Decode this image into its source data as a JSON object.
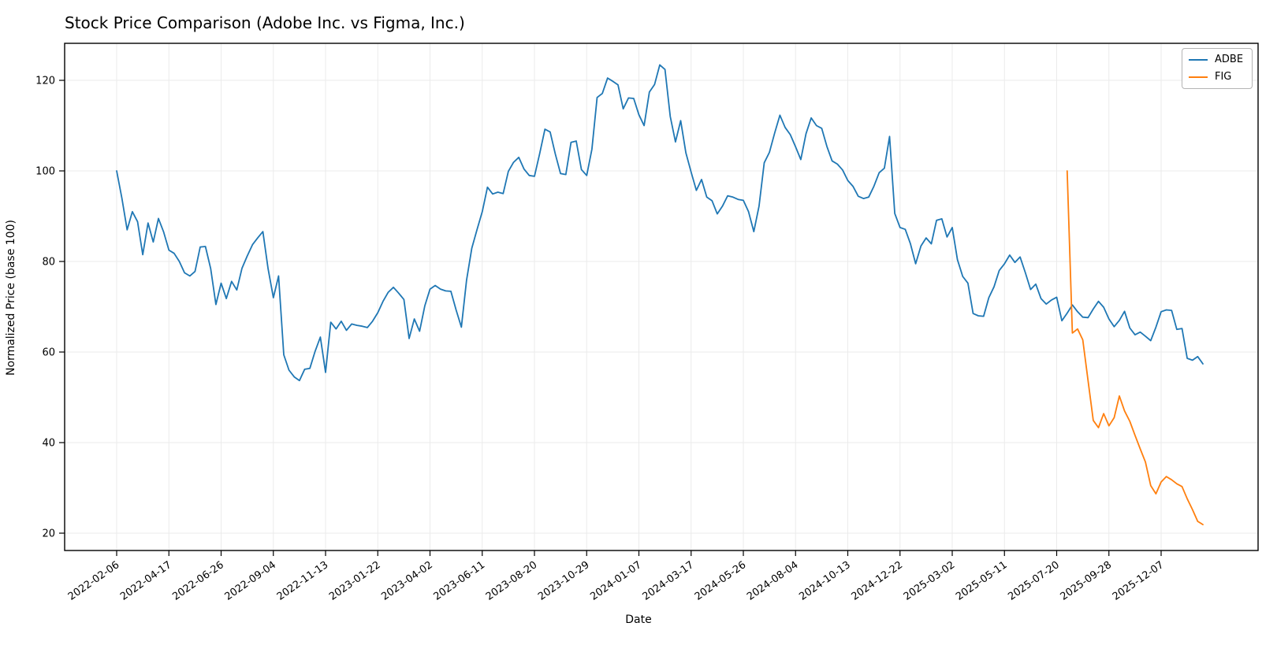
{
  "chart_data": {
    "type": "line",
    "title": "Stock Price Comparison (Adobe Inc. vs Figma, Inc.)",
    "xlabel": "Date",
    "ylabel": "Normalized Price (base 100)",
    "grid": true,
    "legend_position": "upper right",
    "x_start_date": "2022-02-06",
    "x_interval_days": 7,
    "y_ticks": [
      20,
      40,
      60,
      80,
      100,
      120
    ],
    "ylim": [
      16.2,
      128.2
    ],
    "x_ticks": [
      {
        "label": "2022-02-06",
        "week": 0
      },
      {
        "label": "2022-04-17",
        "week": 10
      },
      {
        "label": "2022-06-26",
        "week": 20
      },
      {
        "label": "2022-09-04",
        "week": 30
      },
      {
        "label": "2022-11-13",
        "week": 40
      },
      {
        "label": "2023-01-22",
        "week": 50
      },
      {
        "label": "2023-04-02",
        "week": 60
      },
      {
        "label": "2023-06-11",
        "week": 70
      },
      {
        "label": "2023-08-20",
        "week": 80
      },
      {
        "label": "2023-10-29",
        "week": 90
      },
      {
        "label": "2024-01-07",
        "week": 100
      },
      {
        "label": "2024-03-17",
        "week": 110
      },
      {
        "label": "2024-05-26",
        "week": 120
      },
      {
        "label": "2024-08-04",
        "week": 130
      },
      {
        "label": "2024-10-13",
        "week": 140
      },
      {
        "label": "2024-12-22",
        "week": 150
      },
      {
        "label": "2025-03-02",
        "week": 160
      },
      {
        "label": "2025-05-11",
        "week": 170
      },
      {
        "label": "2025-07-20",
        "week": 180
      },
      {
        "label": "2025-09-28",
        "week": 190
      },
      {
        "label": "2025-12-07",
        "week": 200
      }
    ],
    "series": [
      {
        "name": "ADBE",
        "color": "#1f77b4",
        "start_week": 0,
        "start_date": "2022-02-06",
        "values": [
          100.0,
          94.0,
          87.0,
          91.0,
          88.8,
          81.5,
          88.5,
          84.3,
          89.5,
          86.5,
          82.5,
          81.8,
          80.0,
          77.5,
          76.8,
          77.8,
          83.2,
          83.3,
          78.4,
          70.5,
          75.2,
          71.8,
          75.6,
          73.7,
          78.5,
          81.2,
          83.7,
          85.2,
          86.6,
          78.4,
          72.0,
          76.8,
          59.4,
          56.0,
          54.5,
          53.7,
          56.2,
          56.4,
          60.2,
          63.3,
          55.5,
          66.6,
          65.1,
          66.8,
          64.8,
          66.2,
          65.9,
          65.7,
          65.4,
          66.8,
          68.7,
          71.2,
          73.2,
          74.3,
          73.0,
          71.6,
          63.0,
          67.3,
          64.6,
          70.2,
          73.9,
          74.7,
          73.9,
          73.5,
          73.4,
          69.3,
          65.5,
          75.9,
          82.9,
          87.0,
          91.0,
          96.4,
          94.9,
          95.3,
          95.0,
          99.9,
          101.9,
          103.0,
          100.4,
          99.0,
          98.8,
          103.8,
          109.2,
          108.6,
          103.7,
          99.4,
          99.2,
          106.3,
          106.6,
          100.3,
          99.0,
          104.8,
          116.2,
          117.1,
          120.5,
          119.8,
          119.0,
          113.7,
          116.1,
          116.0,
          112.4,
          110.0,
          117.4,
          119.1,
          123.4,
          122.4,
          112.0,
          106.4,
          111.1,
          104.0,
          99.7,
          95.7,
          98.1,
          94.2,
          93.4,
          90.5,
          92.2,
          94.5,
          94.2,
          93.7,
          93.5,
          91.0,
          86.6,
          92.2,
          101.8,
          104.1,
          108.4,
          112.3,
          109.6,
          108.0,
          105.3,
          102.5,
          108.2,
          111.7,
          110.0,
          109.4,
          105.4,
          102.2,
          101.5,
          100.2,
          97.9,
          96.6,
          94.4,
          93.9,
          94.2,
          96.6,
          99.6,
          100.6,
          107.6,
          90.6,
          87.5,
          87.1,
          83.9,
          79.5,
          83.4,
          85.2,
          83.9,
          89.1,
          89.4,
          85.4,
          87.5,
          80.4,
          76.7,
          75.2,
          68.5,
          68.0,
          67.9,
          72.0,
          74.4,
          78.0,
          79.5,
          81.4,
          79.8,
          81.0,
          77.5,
          73.8,
          75.0,
          71.8,
          70.6,
          71.5,
          72.1,
          66.9,
          68.6,
          70.4,
          68.9,
          67.7,
          67.6,
          69.5,
          71.2,
          69.9,
          67.3,
          65.6,
          67.0,
          69.0,
          65.3,
          63.8,
          64.4,
          63.5,
          62.5,
          65.5,
          68.9,
          69.3,
          69.2,
          65.0,
          65.2,
          58.6,
          58.2,
          59.0,
          57.4
        ]
      },
      {
        "name": "FIG",
        "color": "#ff7f0e",
        "start_week": 182,
        "start_date": "2025-08-03",
        "values": [
          100.0,
          64.2,
          65.1,
          62.7,
          53.7,
          44.9,
          43.3,
          46.4,
          43.7,
          45.5,
          50.3,
          47.0,
          44.7,
          41.6,
          38.6,
          35.7,
          30.5,
          28.7,
          31.3,
          32.5,
          31.8,
          30.9,
          30.3,
          27.6,
          25.2,
          22.6,
          21.9
        ]
      }
    ]
  }
}
